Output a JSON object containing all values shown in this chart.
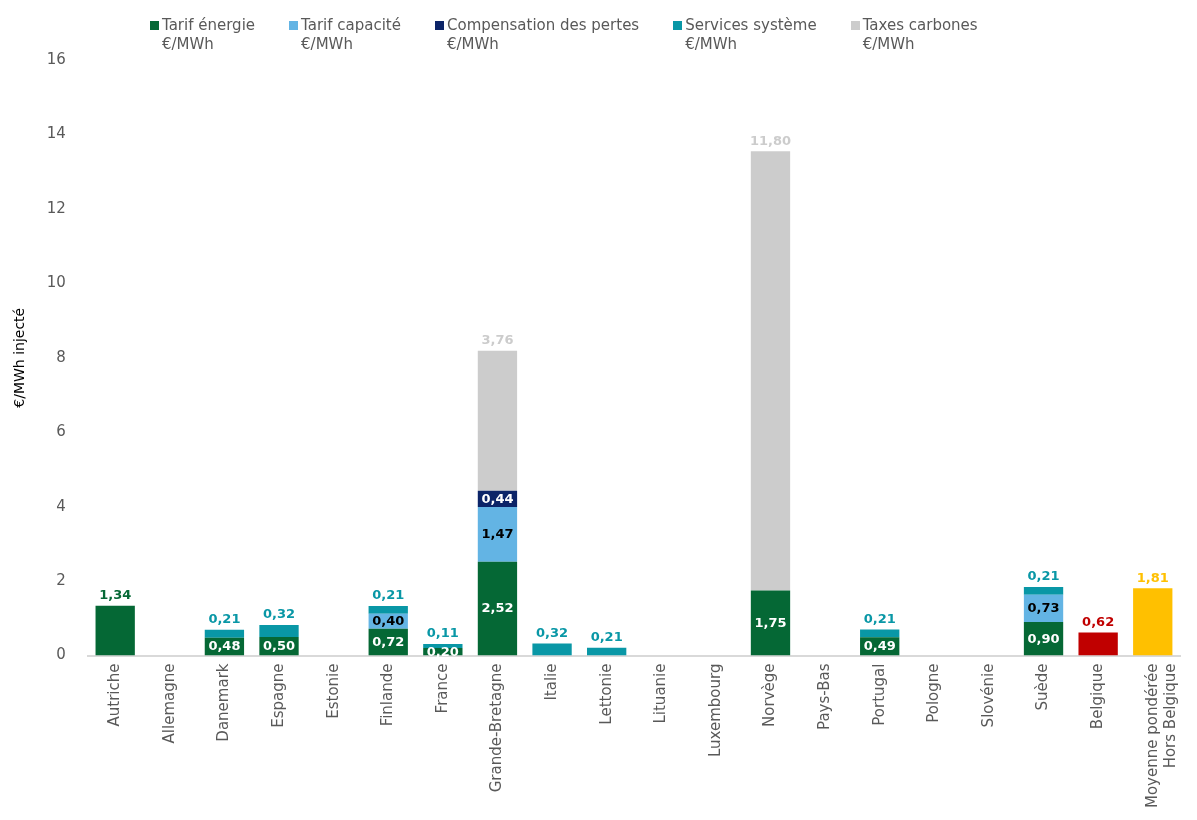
{
  "chart_data": {
    "type": "bar",
    "stacked": true,
    "ylabel": "€/MWh injecté",
    "legend": "top",
    "categories": [
      "Autriche",
      "Allemagne",
      "Danemark",
      "Espagne",
      "Estonie",
      "Finlande",
      "France",
      "Grande-Bretagne",
      "Italie",
      "Lettonie",
      "Lituanie",
      "Luxembourg",
      "Norvège",
      "Pays-Bas",
      "Portugal",
      "Pologne",
      "Slovénie",
      "Suède",
      "Belgique",
      "Moyenne pondérée\nHors Belgique"
    ],
    "ylim": [
      0,
      16
    ],
    "yticks": [
      0,
      2,
      4,
      6,
      8,
      10,
      12,
      14,
      16
    ],
    "grid": false,
    "series": [
      {
        "name": "Tarif énergie\n€/MWh",
        "color": "#056835",
        "values": [
          1.34,
          null,
          0.48,
          0.5,
          null,
          0.72,
          0.2,
          2.52,
          null,
          null,
          null,
          null,
          1.75,
          null,
          0.49,
          null,
          null,
          0.9,
          null,
          null
        ],
        "value_labels": [
          "1,34",
          null,
          "0,48",
          "0,50",
          null,
          "0,72",
          "0,20",
          "2,52",
          null,
          null,
          null,
          null,
          "1,75",
          null,
          "0,49",
          null,
          null,
          "0,90",
          null,
          null
        ]
      },
      {
        "name": "Tarif capacité\n€/MWh",
        "color": "#63b4e4",
        "values": [
          null,
          null,
          null,
          null,
          null,
          0.4,
          null,
          1.47,
          null,
          null,
          null,
          null,
          null,
          null,
          null,
          null,
          null,
          0.73,
          null,
          null
        ],
        "value_labels": [
          null,
          null,
          null,
          null,
          null,
          "0,40",
          null,
          "1,47",
          null,
          null,
          null,
          null,
          null,
          null,
          null,
          null,
          null,
          "0,73",
          null,
          null
        ]
      },
      {
        "name": "Compensation des pertes\n€/MWh",
        "color": "#0c2468",
        "values": [
          null,
          null,
          null,
          null,
          null,
          null,
          null,
          0.44,
          null,
          null,
          null,
          null,
          null,
          null,
          null,
          null,
          null,
          null,
          null,
          null
        ],
        "value_labels": [
          null,
          null,
          null,
          null,
          null,
          null,
          null,
          "0,44",
          null,
          null,
          null,
          null,
          null,
          null,
          null,
          null,
          null,
          null,
          null,
          null
        ]
      },
      {
        "name": "Services système\n€/MWh",
        "color": "#0997a6",
        "values": [
          null,
          null,
          0.21,
          0.32,
          null,
          0.21,
          0.11,
          null,
          0.32,
          0.21,
          null,
          null,
          null,
          null,
          0.21,
          null,
          null,
          0.21,
          null,
          null
        ],
        "value_labels": [
          null,
          null,
          "0,21",
          "0,32",
          null,
          "0,21",
          "0,11",
          null,
          "0,32",
          "0,21",
          null,
          null,
          null,
          null,
          "0,21",
          null,
          null,
          "0,21",
          null,
          null
        ]
      },
      {
        "name": "Taxes carbones\n€/MWh",
        "color": "#cccccc",
        "values": [
          null,
          null,
          null,
          null,
          null,
          null,
          null,
          3.76,
          null,
          null,
          null,
          null,
          11.8,
          null,
          null,
          null,
          null,
          null,
          null,
          null
        ],
        "value_labels": [
          null,
          null,
          null,
          null,
          null,
          null,
          null,
          "3,76",
          null,
          null,
          null,
          null,
          "11,80",
          null,
          null,
          null,
          null,
          null,
          null,
          null
        ]
      },
      {
        "color": "#c00000",
        "colors": [
          null,
          null,
          null,
          null,
          null,
          null,
          null,
          null,
          null,
          null,
          null,
          null,
          null,
          null,
          null,
          null,
          null,
          null,
          "#c00000",
          "#ffc000"
        ],
        "values": [
          null,
          null,
          null,
          null,
          null,
          null,
          null,
          null,
          null,
          null,
          null,
          null,
          null,
          null,
          null,
          null,
          null,
          null,
          0.62,
          1.81
        ],
        "value_labels": [
          null,
          null,
          null,
          null,
          null,
          null,
          null,
          null,
          null,
          null,
          null,
          null,
          null,
          null,
          null,
          null,
          null,
          null,
          "0,62",
          "1,81"
        ]
      }
    ]
  }
}
